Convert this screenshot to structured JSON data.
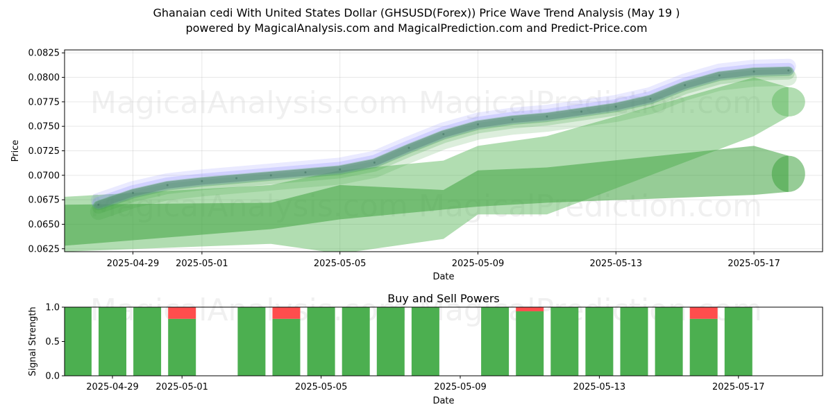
{
  "title_line1": "Ghanaian cedi With United States Dollar (GHSUSD(Forex)) Price Wave Trend Analysis (May 19 )",
  "title_line2": "powered by MagicalAnalysis.com and MagicalPrediction.com and Predict-Price.com",
  "watermarks": [
    "MagicalAnalysis.com",
    "MagicalPrediction.com"
  ],
  "colors": {
    "buy": "#4caf50",
    "sell": "#ff4d4d",
    "wave_blue": "#7b7bff",
    "wave_green": "#3fa33f"
  },
  "chart_data": [
    {
      "type": "line",
      "title": "",
      "xlabel": "Date",
      "ylabel": "Price",
      "ylim": [
        0.0622,
        0.0828
      ],
      "grid": true,
      "x_ticks": [
        "2025-04-29",
        "2025-05-01",
        "2025-05-05",
        "2025-05-09",
        "2025-05-13",
        "2025-05-17"
      ],
      "y_ticks": [
        "0.0625",
        "0.0650",
        "0.0675",
        "0.0700",
        "0.0725",
        "0.0750",
        "0.0775",
        "0.0800",
        "0.0825"
      ],
      "series": [
        {
          "x": [
            "2025-04-28",
            "2025-04-29",
            "2025-04-30",
            "2025-05-01",
            "2025-05-02",
            "2025-05-03",
            "2025-05-04",
            "2025-05-05",
            "2025-05-06",
            "2025-05-07",
            "2025-05-08",
            "2025-05-09",
            "2025-05-10",
            "2025-05-11",
            "2025-05-12",
            "2025-05-13",
            "2025-05-14",
            "2025-05-15",
            "2025-05-16",
            "2025-05-17",
            "2025-05-18"
          ],
          "y": [
            0.067,
            0.0682,
            0.069,
            0.0694,
            0.0697,
            0.07,
            0.0703,
            0.0706,
            0.0713,
            0.0728,
            0.0742,
            0.0752,
            0.0757,
            0.076,
            0.0765,
            0.077,
            0.0778,
            0.0792,
            0.0802,
            0.0806,
            0.0807
          ]
        }
      ],
      "forecast_bands": [
        {
          "x": [
            "2025-04-27",
            "2025-05-03",
            "2025-05-05",
            "2025-05-08",
            "2025-05-09",
            "2025-05-11",
            "2025-05-17",
            "2025-05-18"
          ],
          "upper": [
            0.0678,
            0.069,
            0.0705,
            0.0715,
            0.073,
            0.074,
            0.08,
            0.079
          ],
          "lower": [
            0.0622,
            0.063,
            0.062,
            0.0635,
            0.066,
            0.066,
            0.074,
            0.076
          ]
        },
        {
          "x": [
            "2025-04-27",
            "2025-05-03",
            "2025-05-05",
            "2025-05-08",
            "2025-05-09",
            "2025-05-11",
            "2025-05-17",
            "2025-05-18"
          ],
          "upper": [
            0.067,
            0.0672,
            0.069,
            0.0685,
            0.0705,
            0.0708,
            0.073,
            0.072
          ],
          "lower": [
            0.0628,
            0.0645,
            0.0655,
            0.0665,
            0.0668,
            0.0672,
            0.068,
            0.0683
          ]
        }
      ]
    },
    {
      "type": "bar",
      "title": "Buy and Sell Powers",
      "xlabel": "Date",
      "ylabel": "Signal Strength",
      "ylim": [
        0,
        1
      ],
      "x_ticks": [
        "2025-04-29",
        "2025-05-01",
        "2025-05-05",
        "2025-05-09",
        "2025-05-13",
        "2025-05-17"
      ],
      "y_ticks": [
        "0.0",
        "0.5",
        "1.0"
      ],
      "categories": [
        "2025-04-28",
        "2025-04-29",
        "2025-04-30",
        "2025-05-01",
        "2025-05-03",
        "2025-05-04",
        "2025-05-05",
        "2025-05-06",
        "2025-05-07",
        "2025-05-08",
        "2025-05-10",
        "2025-05-11",
        "2025-05-12",
        "2025-05-13",
        "2025-05-14",
        "2025-05-15",
        "2025-05-16",
        "2025-05-17"
      ],
      "series": [
        {
          "name": "Buy",
          "values": [
            1.0,
            1.0,
            1.0,
            0.83,
            1.0,
            0.83,
            1.0,
            1.0,
            1.0,
            1.0,
            1.0,
            0.94,
            1.0,
            1.0,
            1.0,
            1.0,
            0.83,
            1.0
          ]
        },
        {
          "name": "Sell",
          "values": [
            0.0,
            0.0,
            0.0,
            0.17,
            0.0,
            0.17,
            0.0,
            0.0,
            0.0,
            0.0,
            0.0,
            0.06,
            0.0,
            0.0,
            0.0,
            0.0,
            0.17,
            0.0
          ]
        }
      ]
    }
  ]
}
